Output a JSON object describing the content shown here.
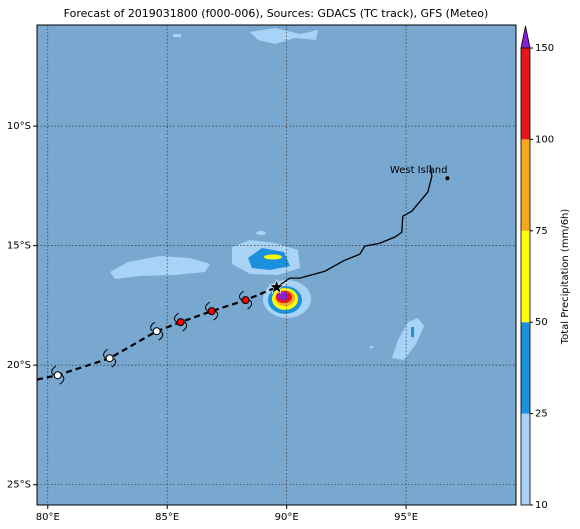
{
  "chart_data": {
    "type": "map",
    "title": "Forecast of 2019031800 (f000-006), Sources: GDACS (TC track), GFS (Meteo)",
    "xlim": [
      79.55,
      99.6
    ],
    "ylim": [
      -25.85,
      -5.77
    ],
    "xticks": [
      {
        "value": 80,
        "label": "80°E"
      },
      {
        "value": 85,
        "label": "85°E"
      },
      {
        "value": 90,
        "label": "90°E"
      },
      {
        "value": 95,
        "label": "95°E"
      }
    ],
    "yticks": [
      {
        "value": -10,
        "label": "10°S"
      },
      {
        "value": -15,
        "label": "15°S"
      },
      {
        "value": -20,
        "label": "20°S"
      },
      {
        "value": -25,
        "label": "25°S"
      }
    ],
    "grid": true,
    "colorbar": {
      "label": "Total Precipitation (mm/6h)",
      "ticks": [
        10,
        25,
        50,
        75,
        100,
        150
      ],
      "colors": [
        "#a8d3f7",
        "#1b90dd",
        "#ffff00",
        "#f7a823",
        "#e8161c"
      ],
      "extend_color": "#8a1fd8"
    },
    "track_line": {
      "lon": [
        79.55,
        80.42,
        82.59,
        84.56,
        85.56,
        86.86,
        88.28,
        89.58
      ],
      "lat": [
        -20.6,
        -20.42,
        -19.71,
        -18.58,
        -18.2,
        -17.74,
        -17.28,
        -16.74
      ]
    },
    "past": {
      "lon": [
        80.42,
        82.59,
        84.56
      ],
      "lat": [
        -20.42,
        -19.71,
        -18.58
      ],
      "color": "#ffffff"
    },
    "forecast": {
      "lon": [
        85.56,
        86.86,
        88.28
      ],
      "lat": [
        -18.2,
        -17.74,
        -17.28
      ],
      "color": "#ff0000"
    },
    "current": {
      "lon": 89.58,
      "lat": -16.74
    },
    "path": {
      "lon": [
        89.58,
        90.13,
        90.55,
        91.6,
        92.43,
        93.06,
        93.27,
        93.9,
        94.53,
        94.82,
        94.86,
        95.24,
        95.91,
        96.08,
        96.0
      ],
      "lat": [
        -16.74,
        -16.36,
        -16.36,
        -16.07,
        -15.61,
        -15.36,
        -15.02,
        -14.9,
        -14.64,
        -14.44,
        -13.77,
        -13.56,
        -12.76,
        -12.09,
        -11.63
      ]
    },
    "place": {
      "name": "West Island",
      "lon": 96.73,
      "lat": -12.18
    }
  }
}
